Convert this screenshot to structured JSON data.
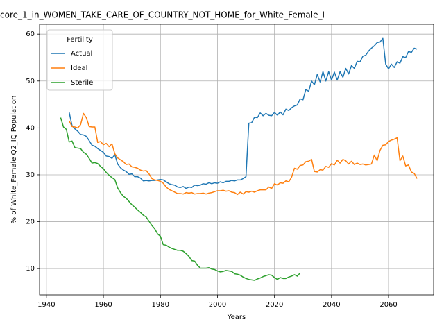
{
  "chart_data": {
    "type": "line",
    "title": "core_1_in_WOMEN_TAKE_CARE_OF_COUNTRY_NOT_HOME_for_White_Female_I",
    "xlabel": "Years",
    "ylabel": "% of White_Female Q2_IQ Population",
    "legend_title": "Fertility",
    "legend_loc": "upper left",
    "grid": true,
    "xlim": [
      1937.6,
      2075.8
    ],
    "ylim": [
      4.4,
      62.1
    ],
    "xticks": [
      1940,
      1960,
      1980,
      2000,
      2020,
      2040,
      2060
    ],
    "yticks": [
      10,
      20,
      30,
      40,
      50,
      60
    ],
    "x": [
      1945,
      1946,
      1947,
      1948,
      1949,
      1950,
      1951,
      1952,
      1953,
      1954,
      1955,
      1956,
      1957,
      1958,
      1959,
      1960,
      1961,
      1962,
      1963,
      1964,
      1965,
      1966,
      1967,
      1968,
      1969,
      1970,
      1971,
      1972,
      1973,
      1974,
      1975,
      1976,
      1977,
      1978,
      1979,
      1980,
      1981,
      1982,
      1983,
      1984,
      1985,
      1986,
      1987,
      1988,
      1989,
      1990,
      1991,
      1992,
      1993,
      1994,
      1995,
      1996,
      1997,
      1998,
      1999,
      2000,
      2001,
      2002,
      2003,
      2004,
      2005,
      2006,
      2007,
      2008,
      2009,
      2010,
      2011,
      2012,
      2013,
      2014,
      2015,
      2016,
      2017,
      2018,
      2019,
      2020,
      2021,
      2022,
      2023,
      2024,
      2025,
      2026,
      2027,
      2028,
      2029,
      2030,
      2031,
      2032,
      2033,
      2034,
      2035,
      2036,
      2037,
      2038,
      2039,
      2040,
      2041,
      2042,
      2043,
      2044,
      2045,
      2046,
      2047,
      2048,
      2049,
      2050,
      2051,
      2052,
      2053,
      2054,
      2055,
      2056,
      2057,
      2058,
      2059,
      2060,
      2061,
      2062,
      2063,
      2064,
      2065,
      2066,
      2067,
      2068,
      2069,
      2070
    ],
    "series": [
      {
        "name": "Actual",
        "color": "#1f77b4",
        "values": [
          null,
          null,
          null,
          43.3,
          40.5,
          39.8,
          39.3,
          38.6,
          38.5,
          38.2,
          37.3,
          36.3,
          36.1,
          35.6,
          35.2,
          34.8,
          34,
          33.9,
          33.5,
          34.3,
          32.3,
          31.5,
          31,
          30.7,
          30.1,
          30.2,
          29.6,
          29.6,
          29.3,
          28.7,
          28.8,
          28.7,
          28.8,
          28.8,
          28.9,
          29,
          28.9,
          28.5,
          28.1,
          27.9,
          27.8,
          27.4,
          27.3,
          27.5,
          27.1,
          27.4,
          27.3,
          27.8,
          27.7,
          27.8,
          28.1,
          28,
          28.3,
          28.1,
          28.3,
          28.2,
          28.5,
          28.3,
          28.6,
          28.6,
          28.8,
          28.7,
          28.9,
          28.9,
          29.2,
          29.6,
          41,
          41.1,
          42.3,
          42.2,
          43.2,
          42.6,
          43.1,
          42.7,
          42.6,
          43.3,
          42.7,
          43.4,
          42.8,
          44,
          43.7,
          44.3,
          44.7,
          44.9,
          46.2,
          46,
          48.2,
          47.8,
          50,
          49.2,
          51.4,
          49.8,
          52,
          50,
          52,
          50.2,
          51.9,
          50.2,
          52,
          50.8,
          52.7,
          51.5,
          53.3,
          52.7,
          54.2,
          54.1,
          55.3,
          55.5,
          56.4,
          57,
          57.5,
          58.2,
          58.3,
          59.1,
          53.6,
          52.6,
          53.6,
          52.9,
          54.1,
          53.8,
          55.2,
          55,
          56.3,
          56.1,
          57,
          56.8
        ]
      },
      {
        "name": "Ideal",
        "color": "#ff7f0e",
        "values": [
          null,
          null,
          null,
          41.5,
          40.3,
          40.2,
          40,
          40.7,
          43.1,
          42.2,
          40.3,
          40.2,
          40.2,
          36.9,
          37.1,
          36.4,
          36.7,
          36,
          36.6,
          34.5,
          33.6,
          33.2,
          32.8,
          32.2,
          32.3,
          31.7,
          31.6,
          31.4,
          31,
          30.8,
          30.9,
          30.2,
          29.2,
          28.9,
          28.8,
          28.6,
          28.2,
          27.4,
          26.9,
          26.6,
          26.3,
          26,
          26,
          25.9,
          26.2,
          26.1,
          26.2,
          25.9,
          26,
          26,
          26.1,
          25.9,
          26.1,
          26.2,
          26.4,
          26.6,
          26.6,
          26.7,
          26.5,
          26.6,
          26.3,
          26.2,
          25.8,
          26.3,
          25.9,
          26.4,
          26.3,
          26.5,
          26.3,
          26.6,
          26.8,
          26.8,
          26.8,
          27.4,
          27.1,
          28.1,
          27.8,
          28.3,
          28.2,
          28.7,
          28.5,
          29.5,
          31.4,
          31.2,
          32,
          32.1,
          32.8,
          32.9,
          33.3,
          30.7,
          30.6,
          31.1,
          31,
          31.8,
          31.6,
          32.4,
          32.1,
          33.1,
          32.5,
          33.3,
          33,
          32.3,
          32.9,
          32.2,
          32.5,
          32.2,
          32.3,
          32.1,
          32.2,
          32.3,
          34.2,
          33,
          35.2,
          36.3,
          36.4,
          37.1,
          37.4,
          37.6,
          37.9,
          33,
          34,
          31.9,
          32.1,
          30.6,
          30.3,
          29.2
        ]
      },
      {
        "name": "Sterile",
        "color": "#2ca02c",
        "values": [
          42.2,
          40.2,
          39.7,
          37,
          37.2,
          35.8,
          35.7,
          35.6,
          34.8,
          34.4,
          33.5,
          32.5,
          32.6,
          32.4,
          31.8,
          31.3,
          30.5,
          29.9,
          29.4,
          29,
          27.2,
          26.2,
          25.4,
          25,
          24.3,
          23.6,
          23.1,
          22.5,
          22,
          21.4,
          21,
          20.1,
          19.2,
          18.5,
          17.4,
          16.9,
          15.1,
          15,
          14.6,
          14.3,
          14.1,
          13.9,
          13.9,
          13.7,
          13.2,
          12.6,
          11.7,
          11.6,
          10.7,
          10.1,
          10.1,
          10.1,
          10.2,
          9.9,
          9.8,
          9.5,
          9.3,
          9.4,
          9.6,
          9.5,
          9.4,
          8.9,
          8.8,
          8.6,
          8.2,
          7.9,
          7.7,
          7.6,
          7.5,
          7.8,
          8,
          8.3,
          8.5,
          8.7,
          8.6,
          8.1,
          7.7,
          8.1,
          7.9,
          7.9,
          8.2,
          8.4,
          8.7,
          8.4,
          9.1,
          null,
          null,
          null,
          null,
          null,
          null,
          null,
          null,
          null,
          null,
          null,
          null,
          null,
          null,
          null,
          null,
          null,
          null,
          null,
          null,
          null,
          null,
          null,
          null,
          null,
          null,
          null,
          null,
          null,
          null,
          null,
          null,
          null,
          null,
          null,
          null,
          null,
          null,
          null,
          null,
          null
        ]
      }
    ]
  }
}
